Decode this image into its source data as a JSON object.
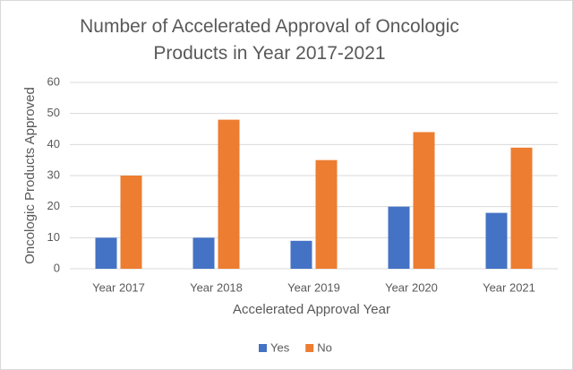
{
  "chart_data": {
    "type": "bar",
    "title": "Number of Accelerated Approval of Oncologic Products in Year 2017-2021",
    "x_label": "Accelerated Approval Year",
    "y_label": "Oncologic Products Approved",
    "categories": [
      "Year 2017",
      "Year 2018",
      "Year 2019",
      "Year 2020",
      "Year 2021"
    ],
    "series": [
      {
        "name": "Yes",
        "color": "#4472c4",
        "values": [
          10,
          10,
          9,
          20,
          18
        ]
      },
      {
        "name": "No",
        "color": "#ed7d31",
        "values": [
          30,
          48,
          35,
          44,
          39
        ]
      }
    ],
    "ylim": [
      0,
      60
    ],
    "yticks": [
      0,
      10,
      20,
      30,
      40,
      50,
      60
    ],
    "grid": true,
    "legend": "bottom"
  }
}
